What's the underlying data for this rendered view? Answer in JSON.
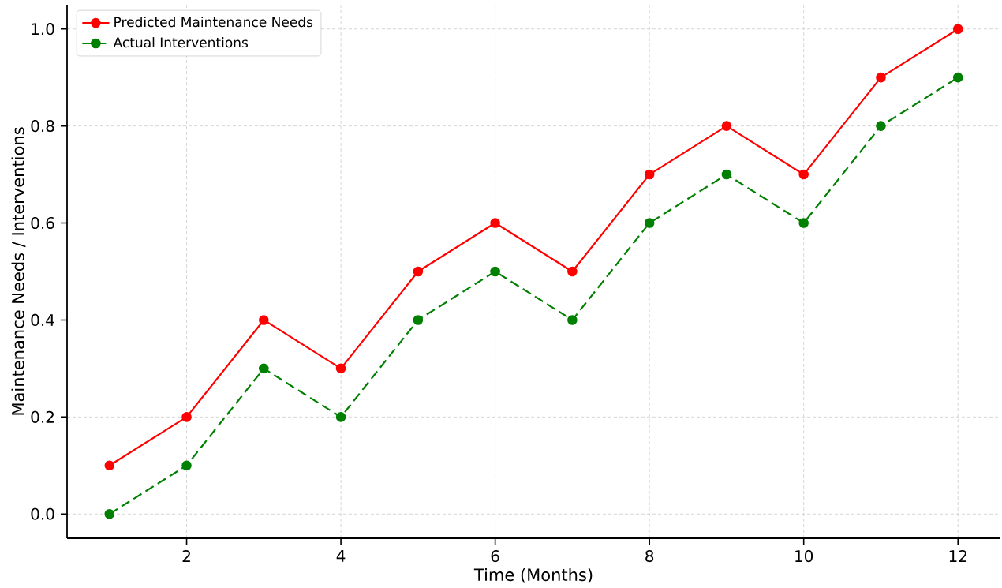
{
  "chart_data": {
    "type": "line",
    "xlabel": "Time (Months)",
    "ylabel": "Maintenance Needs / Interventions",
    "x": [
      1,
      2,
      3,
      4,
      5,
      6,
      7,
      8,
      9,
      10,
      11,
      12
    ],
    "series": [
      {
        "name": "Predicted Maintenance Needs",
        "color": "#ff0000",
        "line_style": "solid",
        "values": [
          0.1,
          0.2,
          0.4,
          0.3,
          0.5,
          0.6,
          0.5,
          0.7,
          0.8,
          0.7,
          0.9,
          1.0
        ]
      },
      {
        "name": "Actual Interventions",
        "color": "#008000",
        "line_style": "dashed",
        "values": [
          0.0,
          0.1,
          0.3,
          0.2,
          0.4,
          0.5,
          0.4,
          0.6,
          0.7,
          0.6,
          0.8,
          0.9
        ]
      }
    ],
    "xlim": [
      0.45,
      12.55
    ],
    "ylim": [
      -0.05,
      1.05
    ],
    "xticks": [
      2,
      4,
      6,
      8,
      10,
      12
    ],
    "yticks": [
      {
        "value": 0,
        "label": "0.0"
      },
      {
        "value": 0.2,
        "label": "0.2"
      },
      {
        "value": 0.4,
        "label": "0.4"
      },
      {
        "value": 0.6,
        "label": "0.6"
      },
      {
        "value": 0.8,
        "label": "0.8"
      },
      {
        "value": 1.0,
        "label": "1.0"
      }
    ],
    "grid": true,
    "legend": "top left",
    "marker": "circle"
  }
}
